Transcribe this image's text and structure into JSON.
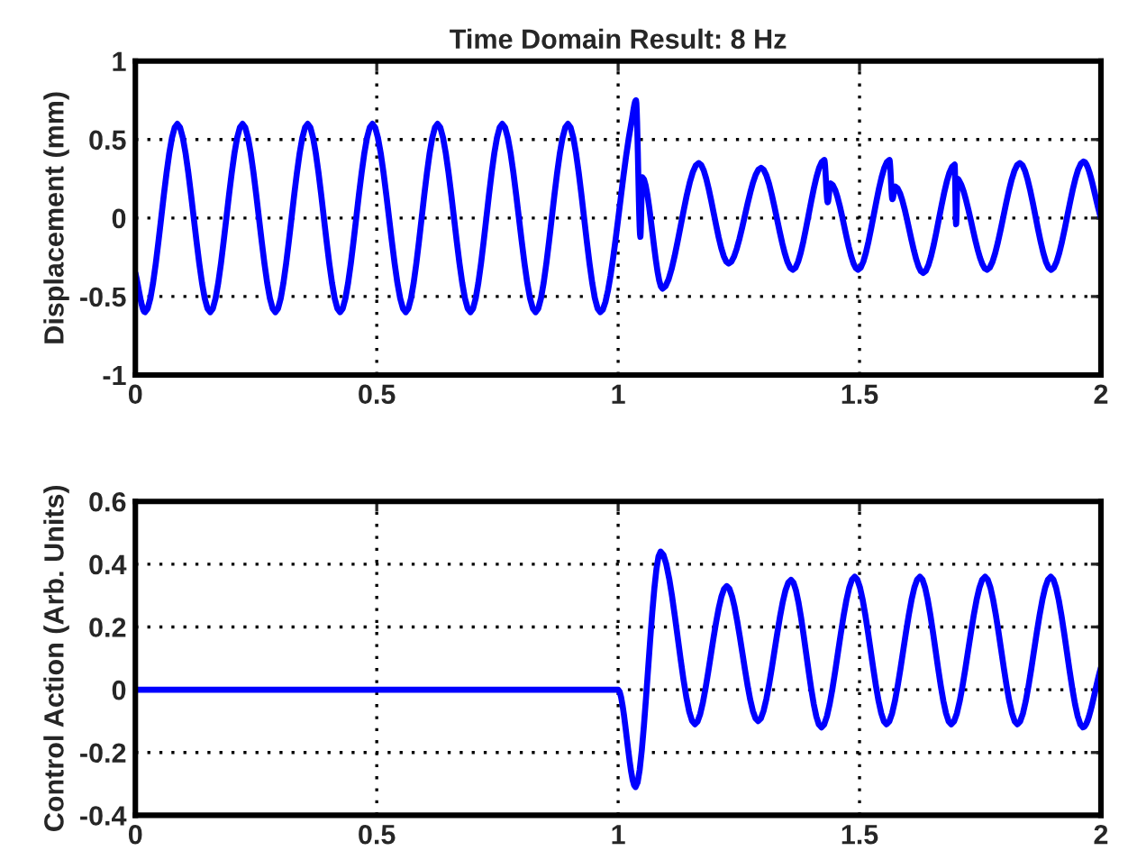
{
  "chart_data": [
    {
      "type": "line",
      "title": "Time Domain Result: 8 Hz",
      "ylabel": "Displacement (mm)",
      "xlim": [
        0,
        2
      ],
      "ylim": [
        -1,
        1
      ],
      "xticks": [
        0,
        0.5,
        1,
        1.5,
        2
      ],
      "yticks": [
        -1,
        -0.5,
        0,
        0.5,
        1
      ],
      "grid": true,
      "series": [
        {
          "color": "#0000ff",
          "x": [
            0,
            0.02,
            0.087,
            0.155,
            0.222,
            0.29,
            0.357,
            0.424,
            0.491,
            0.56,
            0.626,
            0.694,
            0.76,
            0.829,
            0.896,
            0.963,
            1.027,
            1.037,
            1.046,
            1.05,
            1.092,
            1.167,
            1.229,
            1.296,
            1.362,
            1.427,
            1.434,
            1.44,
            1.497,
            1.562,
            1.568,
            1.574,
            1.632,
            1.697,
            1.7,
            1.703,
            1.706,
            1.764,
            1.832,
            1.897,
            1.964,
            2
          ],
          "values": [
            -0.35,
            -0.6,
            0.6,
            -0.6,
            0.6,
            -0.6,
            0.6,
            -0.6,
            0.6,
            -0.6,
            0.6,
            -0.6,
            0.6,
            -0.6,
            0.6,
            -0.6,
            0.6,
            0.75,
            -0.12,
            0.26,
            -0.45,
            0.35,
            -0.29,
            0.32,
            -0.33,
            0.37,
            0.1,
            0.22,
            -0.33,
            0.37,
            0.12,
            0.2,
            -0.35,
            0.34,
            -0.04,
            0.25,
            0.24,
            -0.33,
            0.35,
            -0.33,
            0.36,
            0
          ]
        }
      ]
    },
    {
      "type": "line",
      "ylabel": "Control Action (Arb. Units)",
      "xlim": [
        0,
        2
      ],
      "ylim": [
        -0.4,
        0.6
      ],
      "xticks": [
        0,
        0.5,
        1,
        1.5,
        2
      ],
      "yticks": [
        -0.4,
        -0.2,
        0,
        0.2,
        0.4,
        0.6
      ],
      "grid": true,
      "series": [
        {
          "color": "#0000ff",
          "x": [
            0,
            1.0,
            1.036,
            1.088,
            1.159,
            1.225,
            1.29,
            1.358,
            1.421,
            1.49,
            1.556,
            1.625,
            1.69,
            1.76,
            1.827,
            1.896,
            1.963,
            2
          ],
          "values": [
            0,
            0,
            -0.31,
            0.44,
            -0.11,
            0.33,
            -0.1,
            0.35,
            -0.12,
            0.36,
            -0.11,
            0.36,
            -0.11,
            0.36,
            -0.11,
            0.36,
            -0.12,
            0.07
          ]
        }
      ]
    }
  ]
}
